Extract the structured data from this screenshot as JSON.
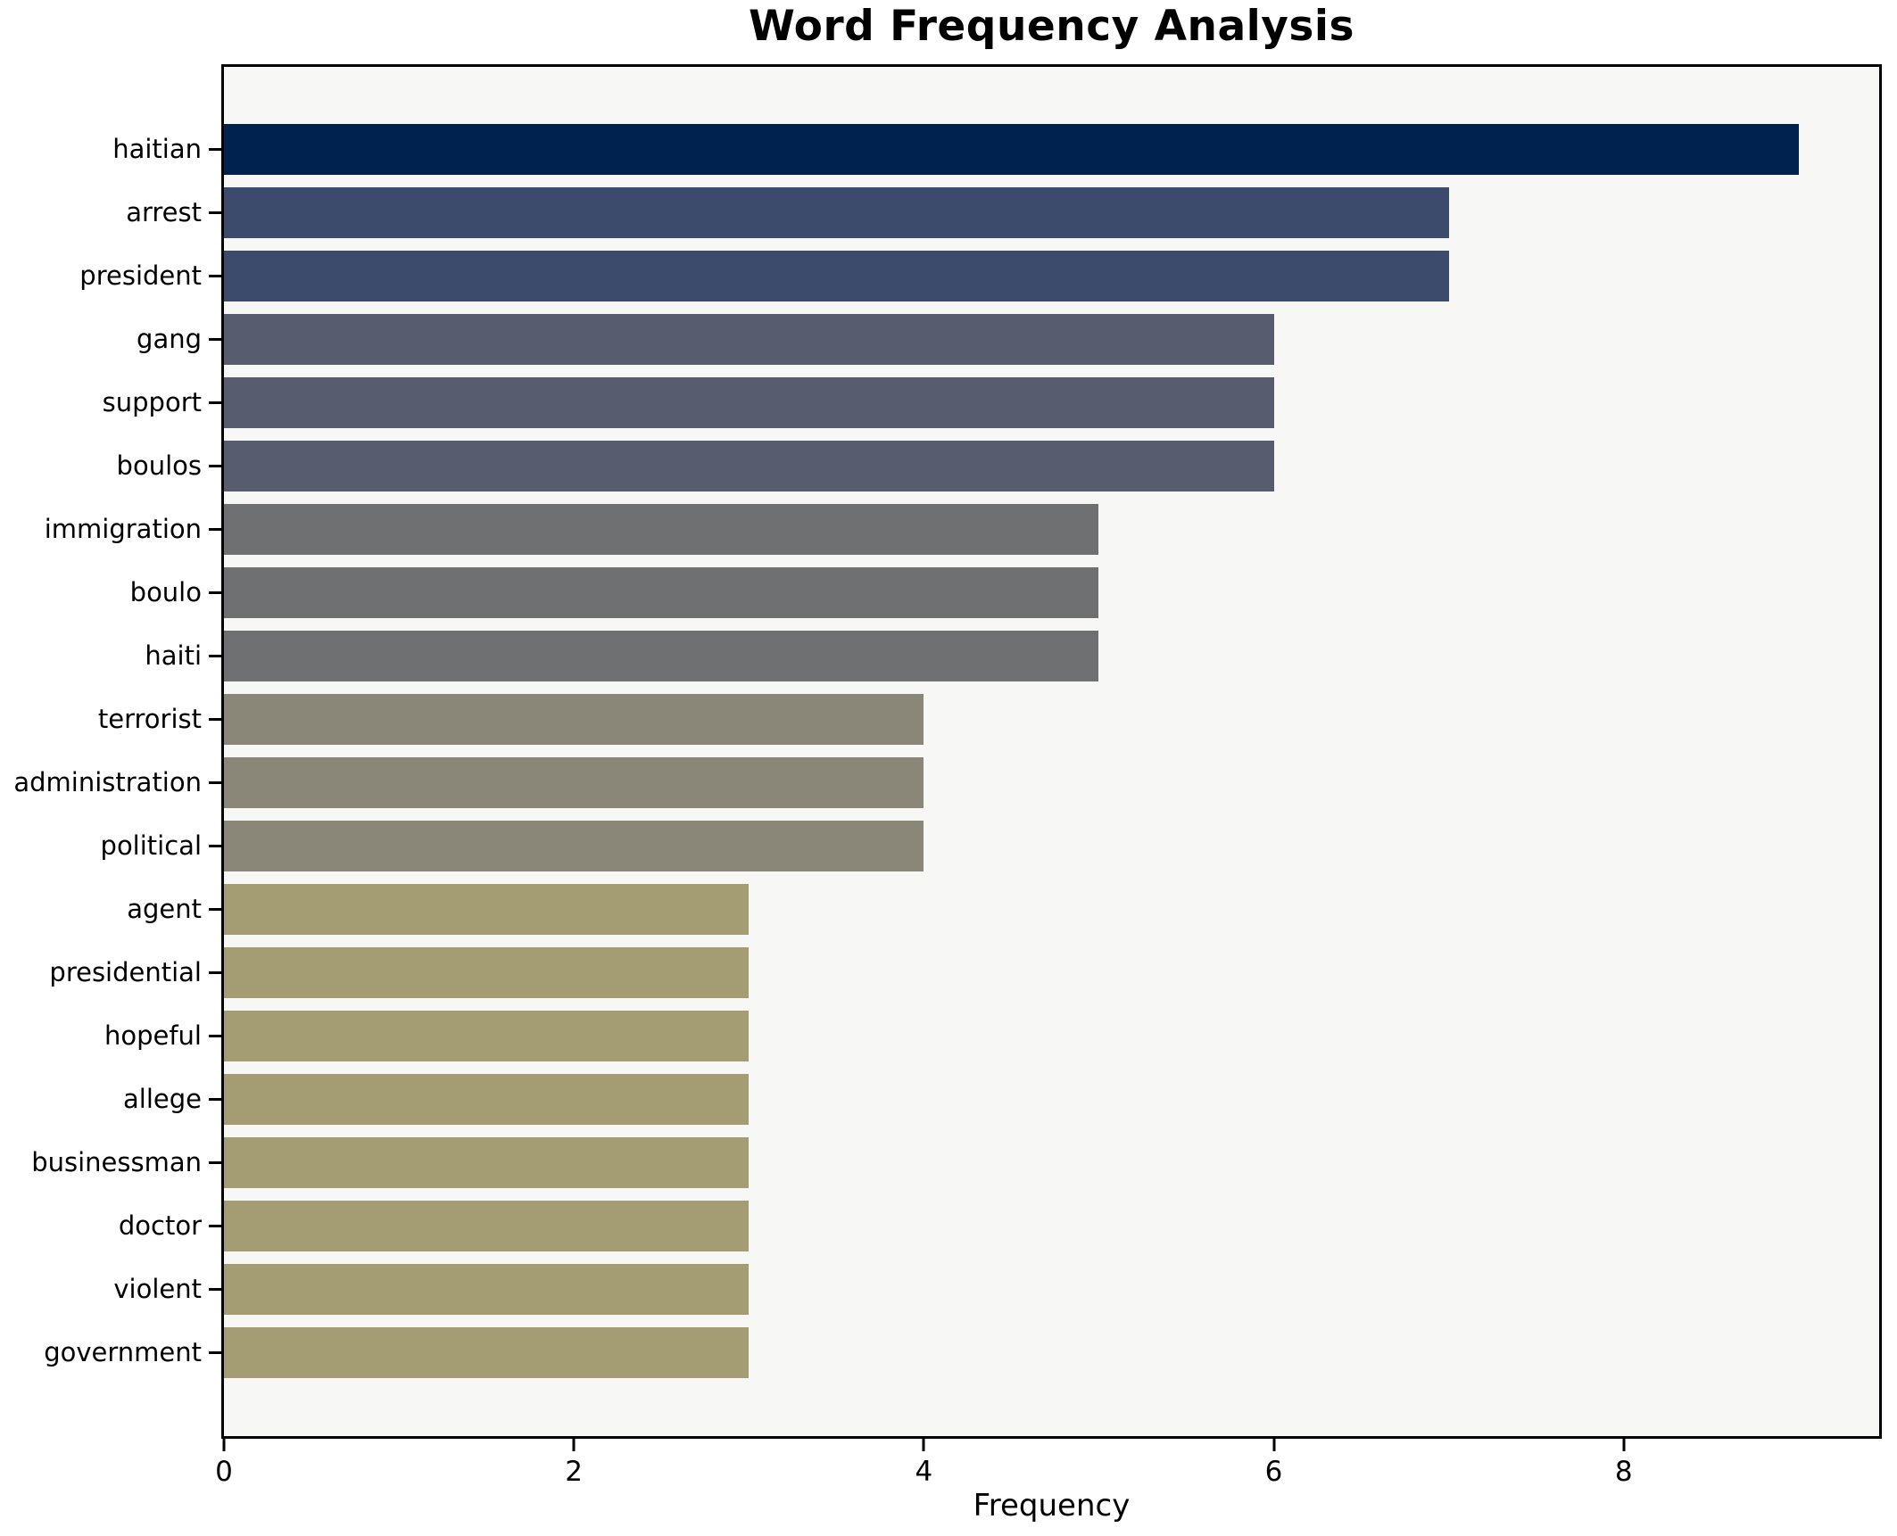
{
  "chart_data": {
    "type": "bar",
    "orientation": "horizontal",
    "title": "Word Frequency Analysis",
    "xlabel": "Frequency",
    "ylabel": "",
    "categories": [
      "haitian",
      "arrest",
      "president",
      "gang",
      "support",
      "boulos",
      "immigration",
      "boulo",
      "haiti",
      "terrorist",
      "administration",
      "political",
      "agent",
      "presidential",
      "hopeful",
      "allege",
      "businessman",
      "doctor",
      "violent",
      "government"
    ],
    "values": [
      9,
      7,
      7,
      6,
      6,
      6,
      5,
      5,
      5,
      4,
      4,
      4,
      3,
      3,
      3,
      3,
      3,
      3,
      3,
      3
    ],
    "bar_colors": [
      "#00224e",
      "#3c4a6c",
      "#3c4a6c",
      "#575d6e",
      "#575d6e",
      "#575d6e",
      "#6f7072",
      "#6f7072",
      "#6f7072",
      "#8a8779",
      "#8a8779",
      "#8a8779",
      "#a49d73",
      "#a49d73",
      "#a49d73",
      "#a49d73",
      "#a49d73",
      "#a49d73",
      "#a49d73",
      "#a49d73"
    ],
    "xlim": [
      0,
      9.46
    ],
    "xticks": [
      0,
      2,
      4,
      6,
      8
    ],
    "xtick_labels": [
      "0",
      "2",
      "4",
      "6",
      "8"
    ],
    "grid": false,
    "legend": null,
    "plot_background": "#f7f7f6",
    "figure_background": "#ffffff",
    "spine_color": "#000000",
    "text_color": "#000000"
  }
}
